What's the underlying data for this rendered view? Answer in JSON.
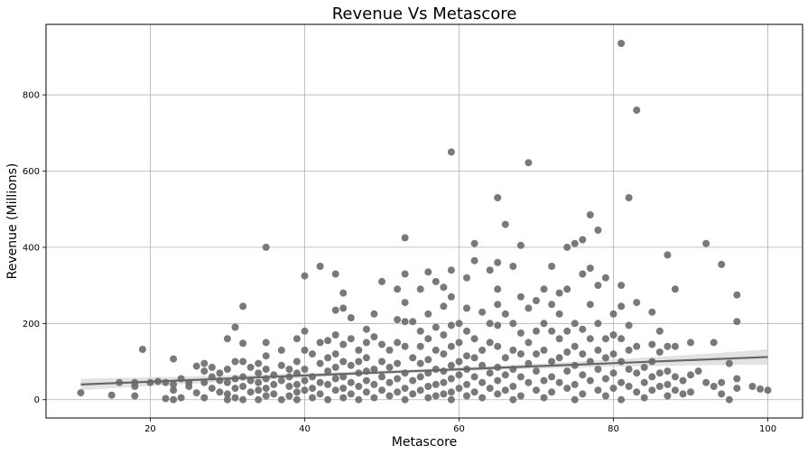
{
  "chart_data": {
    "type": "scatter",
    "title": "Revenue Vs Metascore",
    "xlabel": "Metascore",
    "ylabel": "Revenue (Millions)",
    "xlim": [
      6.5,
      104.5
    ],
    "ylim": [
      -48,
      985
    ],
    "xticks": [
      20,
      40,
      60,
      80,
      100
    ],
    "yticks": [
      0,
      200,
      400,
      600,
      800
    ],
    "grid": true,
    "colors": {
      "points": "#6e6e6e",
      "regression": "#666666",
      "ci_band": "#d8d8d8"
    },
    "regression": {
      "intercept": 31.1,
      "slope": 0.81,
      "x_range": [
        11,
        100
      ],
      "ci_start": 15,
      "ci_mid": 5,
      "ci_end": 20
    },
    "points": [
      [
        11,
        18
      ],
      [
        15,
        12
      ],
      [
        16,
        45
      ],
      [
        18,
        10
      ],
      [
        18,
        35
      ],
      [
        18,
        45
      ],
      [
        19,
        132
      ],
      [
        20,
        45
      ],
      [
        21,
        48
      ],
      [
        22,
        3
      ],
      [
        22,
        45
      ],
      [
        23,
        107
      ],
      [
        23,
        0
      ],
      [
        23,
        25
      ],
      [
        23,
        40
      ],
      [
        24,
        5
      ],
      [
        24,
        55
      ],
      [
        25,
        35
      ],
      [
        25,
        45
      ],
      [
        26,
        88
      ],
      [
        26,
        18
      ],
      [
        27,
        95
      ],
      [
        27,
        75
      ],
      [
        27,
        45
      ],
      [
        27,
        5
      ],
      [
        28,
        85
      ],
      [
        28,
        60
      ],
      [
        28,
        30
      ],
      [
        29,
        50
      ],
      [
        29,
        20
      ],
      [
        29,
        70
      ],
      [
        30,
        160
      ],
      [
        30,
        80
      ],
      [
        30,
        45
      ],
      [
        30,
        15
      ],
      [
        30,
        0
      ],
      [
        31,
        190
      ],
      [
        31,
        100
      ],
      [
        31,
        55
      ],
      [
        31,
        30
      ],
      [
        31,
        5
      ],
      [
        32,
        245
      ],
      [
        32,
        148
      ],
      [
        32,
        100
      ],
      [
        32,
        60
      ],
      [
        32,
        35
      ],
      [
        32,
        0
      ],
      [
        33,
        85
      ],
      [
        33,
        50
      ],
      [
        33,
        20
      ],
      [
        34,
        95
      ],
      [
        34,
        70
      ],
      [
        34,
        45
      ],
      [
        34,
        25
      ],
      [
        34,
        0
      ],
      [
        35,
        400
      ],
      [
        35,
        150
      ],
      [
        35,
        115
      ],
      [
        35,
        80
      ],
      [
        35,
        55
      ],
      [
        35,
        30
      ],
      [
        35,
        10
      ],
      [
        36,
        65
      ],
      [
        36,
        40
      ],
      [
        36,
        15
      ],
      [
        37,
        130
      ],
      [
        37,
        90
      ],
      [
        37,
        50
      ],
      [
        37,
        0
      ],
      [
        38,
        80
      ],
      [
        38,
        60
      ],
      [
        38,
        35
      ],
      [
        38,
        10
      ],
      [
        39,
        160
      ],
      [
        39,
        100
      ],
      [
        39,
        70
      ],
      [
        39,
        40
      ],
      [
        39,
        20
      ],
      [
        39,
        0
      ],
      [
        40,
        325
      ],
      [
        40,
        180
      ],
      [
        40,
        130
      ],
      [
        40,
        80
      ],
      [
        40,
        50
      ],
      [
        40,
        25
      ],
      [
        41,
        120
      ],
      [
        41,
        60
      ],
      [
        41,
        30
      ],
      [
        41,
        5
      ],
      [
        42,
        350
      ],
      [
        42,
        150
      ],
      [
        42,
        95
      ],
      [
        42,
        45
      ],
      [
        42,
        15
      ],
      [
        43,
        155
      ],
      [
        43,
        110
      ],
      [
        43,
        75
      ],
      [
        43,
        40
      ],
      [
        43,
        0
      ],
      [
        44,
        330
      ],
      [
        44,
        235
      ],
      [
        44,
        170
      ],
      [
        44,
        120
      ],
      [
        44,
        85
      ],
      [
        44,
        55
      ],
      [
        44,
        25
      ],
      [
        45,
        280
      ],
      [
        45,
        240
      ],
      [
        45,
        145
      ],
      [
        45,
        100
      ],
      [
        45,
        60
      ],
      [
        45,
        30
      ],
      [
        45,
        5
      ],
      [
        46,
        215
      ],
      [
        46,
        160
      ],
      [
        46,
        90
      ],
      [
        46,
        45
      ],
      [
        46,
        15
      ],
      [
        47,
        130
      ],
      [
        47,
        100
      ],
      [
        47,
        70
      ],
      [
        47,
        35
      ],
      [
        47,
        0
      ],
      [
        48,
        185
      ],
      [
        48,
        150
      ],
      [
        48,
        110
      ],
      [
        48,
        75
      ],
      [
        48,
        50
      ],
      [
        48,
        20
      ],
      [
        49,
        225
      ],
      [
        49,
        165
      ],
      [
        49,
        80
      ],
      [
        49,
        40
      ],
      [
        49,
        5
      ],
      [
        50,
        310
      ],
      [
        50,
        145
      ],
      [
        50,
        100
      ],
      [
        50,
        60
      ],
      [
        50,
        25
      ],
      [
        51,
        130
      ],
      [
        51,
        85
      ],
      [
        51,
        45
      ],
      [
        51,
        10
      ],
      [
        52,
        290
      ],
      [
        52,
        210
      ],
      [
        52,
        150
      ],
      [
        52,
        95
      ],
      [
        52,
        55
      ],
      [
        52,
        20
      ],
      [
        53,
        425
      ],
      [
        53,
        330
      ],
      [
        53,
        255
      ],
      [
        53,
        205
      ],
      [
        53,
        140
      ],
      [
        53,
        70
      ],
      [
        53,
        30
      ],
      [
        53,
        0
      ],
      [
        54,
        205
      ],
      [
        54,
        110
      ],
      [
        54,
        50
      ],
      [
        54,
        15
      ],
      [
        55,
        290
      ],
      [
        55,
        180
      ],
      [
        55,
        140
      ],
      [
        55,
        95
      ],
      [
        55,
        60
      ],
      [
        55,
        25
      ],
      [
        56,
        335
      ],
      [
        56,
        225
      ],
      [
        56,
        160
      ],
      [
        56,
        105
      ],
      [
        56,
        70
      ],
      [
        56,
        35
      ],
      [
        56,
        5
      ],
      [
        57,
        310
      ],
      [
        57,
        190
      ],
      [
        57,
        130
      ],
      [
        57,
        80
      ],
      [
        57,
        40
      ],
      [
        57,
        10
      ],
      [
        58,
        295
      ],
      [
        58,
        245
      ],
      [
        58,
        170
      ],
      [
        58,
        120
      ],
      [
        58,
        75
      ],
      [
        58,
        45
      ],
      [
        58,
        15
      ],
      [
        59,
        650
      ],
      [
        59,
        340
      ],
      [
        59,
        270
      ],
      [
        59,
        195
      ],
      [
        59,
        140
      ],
      [
        59,
        90
      ],
      [
        59,
        55
      ],
      [
        59,
        20
      ],
      [
        59,
        0
      ],
      [
        60,
        200
      ],
      [
        60,
        150
      ],
      [
        60,
        100
      ],
      [
        60,
        65
      ],
      [
        60,
        30
      ],
      [
        61,
        320
      ],
      [
        61,
        240
      ],
      [
        61,
        180
      ],
      [
        61,
        115
      ],
      [
        61,
        80
      ],
      [
        61,
        40
      ],
      [
        61,
        10
      ],
      [
        62,
        410
      ],
      [
        62,
        365
      ],
      [
        62,
        160
      ],
      [
        62,
        110
      ],
      [
        62,
        60
      ],
      [
        62,
        20
      ],
      [
        63,
        230
      ],
      [
        63,
        130
      ],
      [
        63,
        90
      ],
      [
        63,
        45
      ],
      [
        63,
        5
      ],
      [
        64,
        340
      ],
      [
        64,
        200
      ],
      [
        64,
        150
      ],
      [
        64,
        70
      ],
      [
        64,
        30
      ],
      [
        65,
        530
      ],
      [
        65,
        360
      ],
      [
        65,
        290
      ],
      [
        65,
        250
      ],
      [
        65,
        195
      ],
      [
        65,
        140
      ],
      [
        65,
        85
      ],
      [
        65,
        50
      ],
      [
        65,
        15
      ],
      [
        66,
        460
      ],
      [
        66,
        225
      ],
      [
        66,
        110
      ],
      [
        66,
        65
      ],
      [
        66,
        25
      ],
      [
        67,
        350
      ],
      [
        67,
        200
      ],
      [
        67,
        130
      ],
      [
        67,
        80
      ],
      [
        67,
        35
      ],
      [
        67,
        0
      ],
      [
        68,
        405
      ],
      [
        68,
        270
      ],
      [
        68,
        175
      ],
      [
        68,
        120
      ],
      [
        68,
        60
      ],
      [
        68,
        10
      ],
      [
        69,
        622
      ],
      [
        69,
        240
      ],
      [
        69,
        150
      ],
      [
        69,
        95
      ],
      [
        69,
        45
      ],
      [
        70,
        260
      ],
      [
        70,
        180
      ],
      [
        70,
        120
      ],
      [
        70,
        75
      ],
      [
        70,
        25
      ],
      [
        71,
        290
      ],
      [
        71,
        200
      ],
      [
        71,
        130
      ],
      [
        71,
        50
      ],
      [
        71,
        5
      ],
      [
        72,
        350
      ],
      [
        72,
        250
      ],
      [
        72,
        180
      ],
      [
        72,
        100
      ],
      [
        72,
        60
      ],
      [
        72,
        20
      ],
      [
        73,
        280
      ],
      [
        73,
        225
      ],
      [
        73,
        160
      ],
      [
        73,
        110
      ],
      [
        73,
        45
      ],
      [
        74,
        400
      ],
      [
        74,
        290
      ],
      [
        74,
        180
      ],
      [
        74,
        125
      ],
      [
        74,
        75
      ],
      [
        74,
        30
      ],
      [
        75,
        410
      ],
      [
        75,
        200
      ],
      [
        75,
        140
      ],
      [
        75,
        90
      ],
      [
        75,
        40
      ],
      [
        75,
        0
      ],
      [
        76,
        420
      ],
      [
        76,
        330
      ],
      [
        76,
        185
      ],
      [
        76,
        120
      ],
      [
        76,
        65
      ],
      [
        76,
        15
      ],
      [
        77,
        485
      ],
      [
        77,
        345
      ],
      [
        77,
        250
      ],
      [
        77,
        160
      ],
      [
        77,
        100
      ],
      [
        77,
        50
      ],
      [
        78,
        445
      ],
      [
        78,
        300
      ],
      [
        78,
        200
      ],
      [
        78,
        130
      ],
      [
        78,
        80
      ],
      [
        78,
        25
      ],
      [
        79,
        320
      ],
      [
        79,
        160
      ],
      [
        79,
        110
      ],
      [
        79,
        55
      ],
      [
        79,
        10
      ],
      [
        80,
        225
      ],
      [
        80,
        170
      ],
      [
        80,
        120
      ],
      [
        80,
        70
      ],
      [
        80,
        30
      ],
      [
        81,
        935
      ],
      [
        81,
        300
      ],
      [
        81,
        245
      ],
      [
        81,
        160
      ],
      [
        81,
        100
      ],
      [
        81,
        45
      ],
      [
        81,
        0
      ],
      [
        82,
        530
      ],
      [
        82,
        195
      ],
      [
        82,
        130
      ],
      [
        82,
        80
      ],
      [
        82,
        35
      ],
      [
        83,
        760
      ],
      [
        83,
        255
      ],
      [
        83,
        140
      ],
      [
        83,
        70
      ],
      [
        83,
        20
      ],
      [
        84,
        85
      ],
      [
        84,
        45
      ],
      [
        84,
        5
      ],
      [
        85,
        230
      ],
      [
        85,
        145
      ],
      [
        85,
        100
      ],
      [
        85,
        60
      ],
      [
        85,
        25
      ],
      [
        86,
        180
      ],
      [
        86,
        125
      ],
      [
        86,
        70
      ],
      [
        86,
        35
      ],
      [
        87,
        380
      ],
      [
        87,
        140
      ],
      [
        87,
        75
      ],
      [
        87,
        40
      ],
      [
        87,
        10
      ],
      [
        88,
        290
      ],
      [
        88,
        140
      ],
      [
        88,
        60
      ],
      [
        88,
        25
      ],
      [
        89,
        50
      ],
      [
        89,
        15
      ],
      [
        90,
        150
      ],
      [
        90,
        65
      ],
      [
        90,
        20
      ],
      [
        91,
        75
      ],
      [
        92,
        410
      ],
      [
        92,
        45
      ],
      [
        93,
        150
      ],
      [
        93,
        35
      ],
      [
        94,
        355
      ],
      [
        94,
        45
      ],
      [
        94,
        15
      ],
      [
        95,
        95
      ],
      [
        95,
        0
      ],
      [
        96,
        275
      ],
      [
        96,
        205
      ],
      [
        96,
        55
      ],
      [
        96,
        30
      ],
      [
        98,
        35
      ],
      [
        99,
        28
      ],
      [
        100,
        25
      ]
    ]
  }
}
